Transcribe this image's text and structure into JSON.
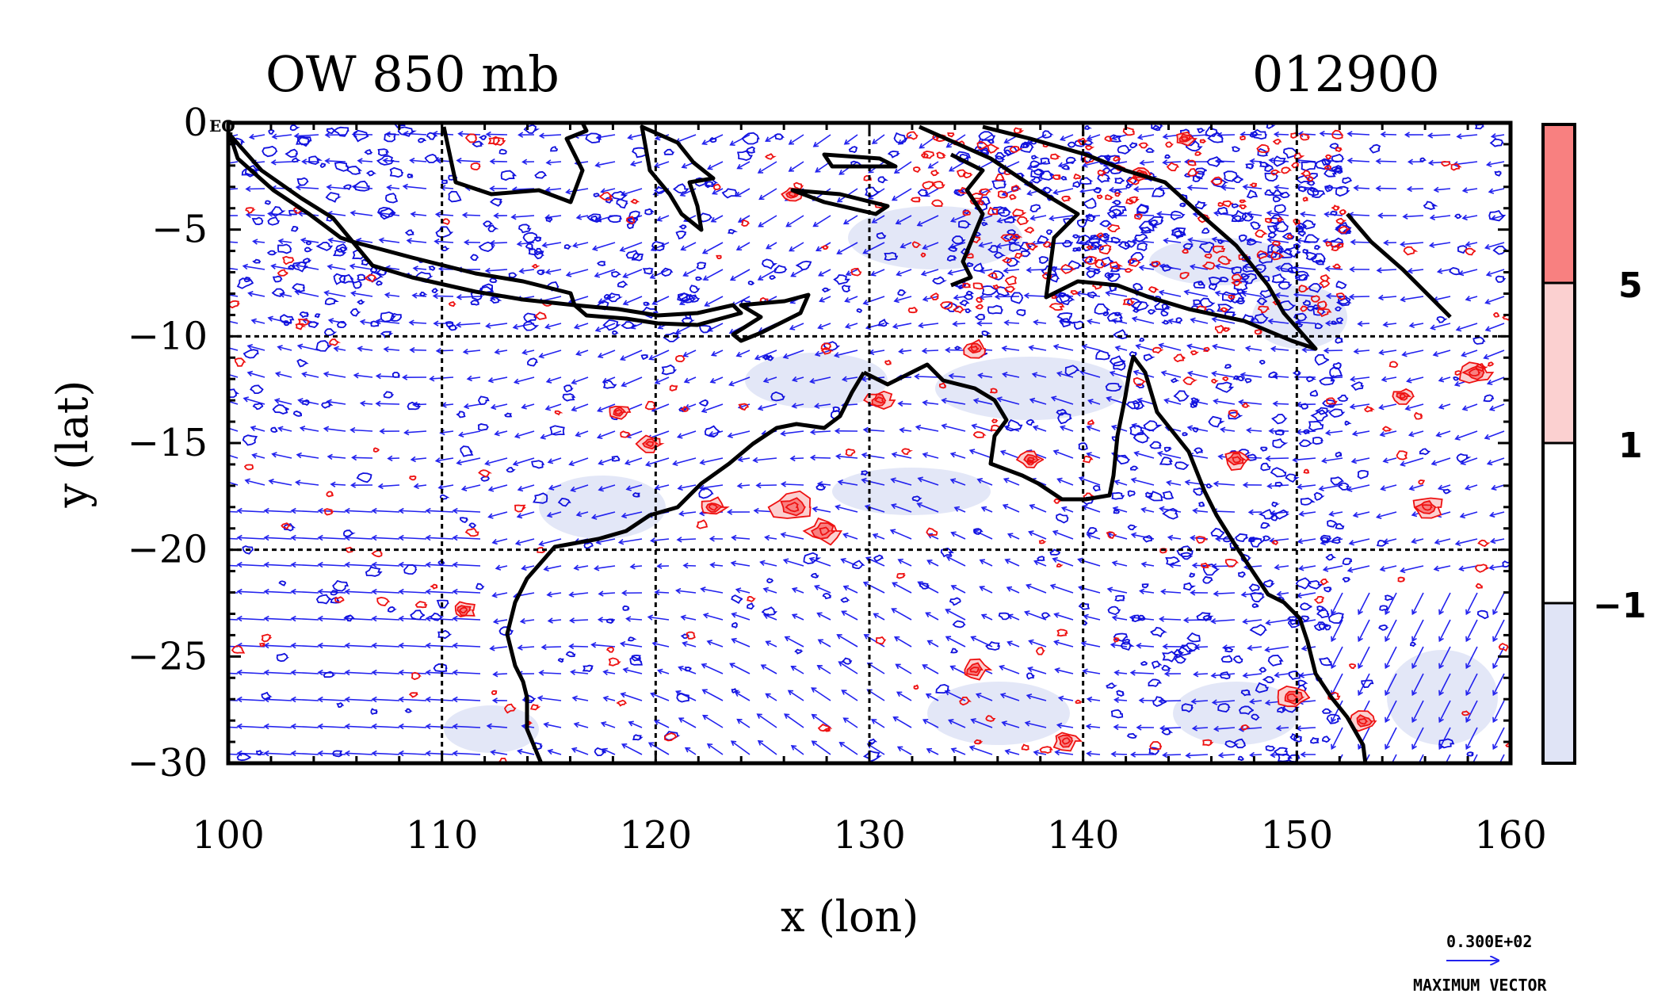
{
  "title_left": "OW 850 mb",
  "title_right": "012900",
  "equator_label": "EQ",
  "chart_data": {
    "type": "map",
    "title": "OW 850 mb",
    "timestamp": "012900",
    "xlabel": "x (lon)",
    "ylabel": "y (lat)",
    "xlim": [
      100,
      160
    ],
    "ylim": [
      -30,
      0
    ],
    "x_ticks": [
      "100",
      "110",
      "120",
      "130",
      "140",
      "150",
      "160"
    ],
    "y_ticks": [
      "0",
      "−5",
      "−10",
      "−15",
      "−20",
      "−25",
      "−30"
    ],
    "grid_lon": [
      110,
      120,
      130,
      140,
      150
    ],
    "grid_lat": [
      -10,
      -20
    ],
    "colorbar": {
      "labels": [
        "5",
        "1",
        "−1"
      ],
      "colors": [
        "#f88080",
        "#fbd0d0",
        "#ffffff",
        "#e0e4f6"
      ]
    },
    "contour_colors": {
      "positive": "#ee1111",
      "negative": "#1111dd",
      "vector": "#2222ee"
    }
  },
  "vector_key": {
    "value": "0.300E+02",
    "label": "MAXIMUM VECTOR"
  }
}
